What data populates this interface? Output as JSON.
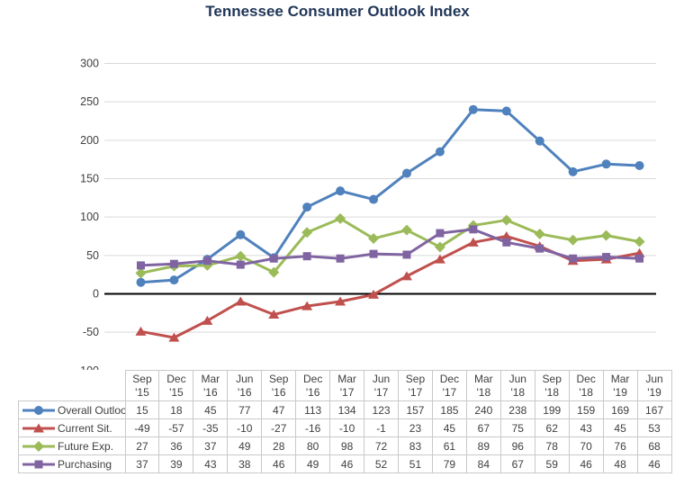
{
  "title": "Tennessee Consumer Outlook Index",
  "colors": {
    "title_text": "#1F3557",
    "grid_line": "#D9D9D9",
    "zero_line": "#000000",
    "axis_text": "#404040",
    "table_border": "#C9C9C9",
    "table_text": "#404040"
  },
  "chart_data": {
    "type": "line",
    "title": "Tennessee Consumer Outlook Index",
    "categories": [
      "Sep '15",
      "Dec '15",
      "Mar '16",
      "Jun '16",
      "Sep '16",
      "Dec '16",
      "Mar '17",
      "Jun '17",
      "Sep '17",
      "Dec '17",
      "Mar '18",
      "Jun '18",
      "Sep '18",
      "Dec '18",
      "Mar '19",
      "Jun '19"
    ],
    "series": [
      {
        "name": "Overall Outlook",
        "color": "#4F81BD",
        "marker": "circle",
        "values": [
          15,
          18,
          45,
          77,
          47,
          113,
          134,
          123,
          157,
          185,
          240,
          238,
          199,
          159,
          169,
          167
        ]
      },
      {
        "name": "Current Sit.",
        "color": "#C0504D",
        "marker": "triangle",
        "values": [
          -49,
          -57,
          -35,
          -10,
          -27,
          -16,
          -10,
          -1,
          23,
          45,
          67,
          75,
          62,
          43,
          45,
          53
        ]
      },
      {
        "name": "Future Exp.",
        "color": "#9BBB59",
        "marker": "diamond",
        "values": [
          27,
          36,
          37,
          49,
          28,
          80,
          98,
          72,
          83,
          61,
          89,
          96,
          78,
          70,
          76,
          68
        ]
      },
      {
        "name": "Purchasing",
        "color": "#8064A2",
        "marker": "square",
        "values": [
          37,
          39,
          43,
          38,
          46,
          49,
          46,
          52,
          51,
          79,
          84,
          67,
          59,
          46,
          48,
          46
        ]
      }
    ],
    "ylim": [
      -100,
      300
    ],
    "ytick_step": 50,
    "grid": true,
    "legend_position": "data-table-left"
  }
}
